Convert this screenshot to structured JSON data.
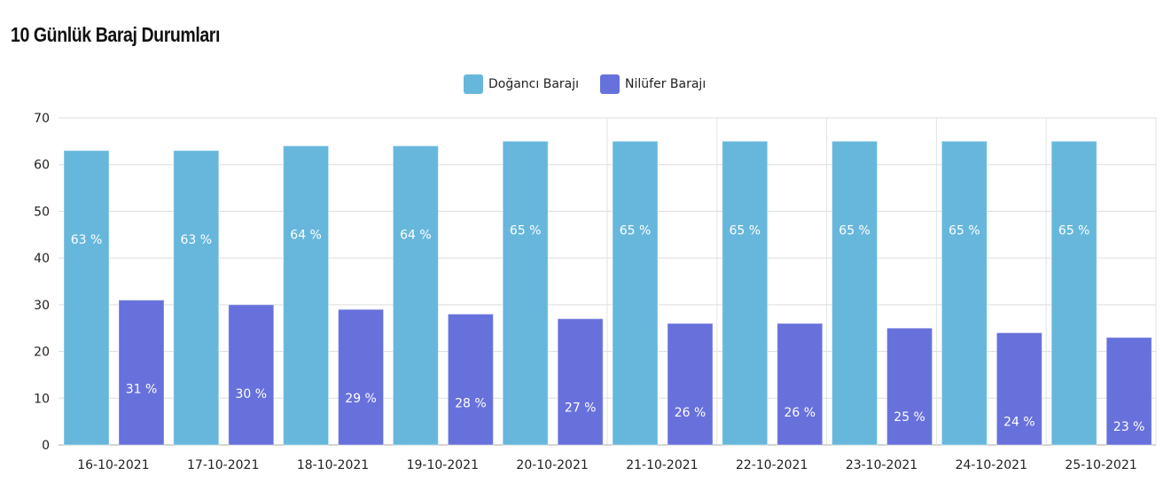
{
  "title": "10 Günlük Baraj Durumları",
  "chart_data": {
    "type": "bar",
    "title": "10 Günlük Baraj Durumları",
    "categories": [
      "16-10-2021",
      "17-10-2021",
      "18-10-2021",
      "19-10-2021",
      "20-10-2021",
      "21-10-2021",
      "22-10-2021",
      "23-10-2021",
      "24-10-2021",
      "25-10-2021"
    ],
    "series": [
      {
        "name": "Doğancı Barajı",
        "color": "#67b7dc",
        "values": [
          63,
          63,
          64,
          64,
          65,
          65,
          65,
          65,
          65,
          65
        ]
      },
      {
        "name": "Nilüfer Barajı",
        "color": "#6771dc",
        "values": [
          31,
          30,
          29,
          28,
          27,
          26,
          26,
          25,
          24,
          23
        ]
      }
    ],
    "label_suffix": " %",
    "ylim": [
      0,
      70
    ],
    "yticks": [
      0,
      10,
      20,
      30,
      40,
      50,
      60,
      70
    ],
    "legend": "top-center",
    "xlabel": "",
    "ylabel": ""
  }
}
